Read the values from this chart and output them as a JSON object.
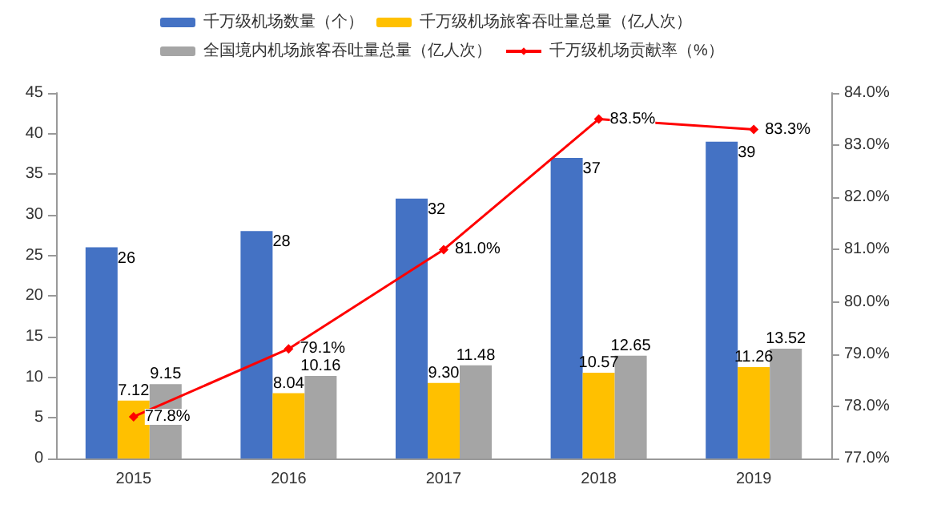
{
  "chart_data": {
    "type": "bar",
    "categories": [
      "2015",
      "2016",
      "2017",
      "2018",
      "2019"
    ],
    "series": [
      {
        "name": "千万级机场数量（个）",
        "color": "#4472c4",
        "values": [
          26,
          28,
          32,
          37,
          39
        ],
        "value_labels": [
          "26",
          "28",
          "32",
          "37",
          "39"
        ]
      },
      {
        "name": "千万级机场旅客吞吐量总量（亿人次）",
        "color": "#ffc000",
        "values": [
          7.12,
          8.04,
          9.3,
          10.57,
          11.26
        ],
        "value_labels": [
          "7.12",
          "8.04",
          "9.30",
          "10.57",
          "11.26"
        ]
      },
      {
        "name": "全国境内机场旅客吞吐量总量（亿人次）",
        "color": "#a5a5a5",
        "values": [
          9.15,
          10.16,
          11.48,
          12.65,
          13.52
        ],
        "value_labels": [
          "9.15",
          "10.16",
          "11.48",
          "12.65",
          "13.52"
        ]
      },
      {
        "name": "千万级机场贡献率（%）",
        "type": "line",
        "axis": "y2",
        "color": "#ff0000",
        "values": [
          77.8,
          79.1,
          81.0,
          83.5,
          83.3
        ],
        "value_labels": [
          "77.8%",
          "79.1%",
          "81.0%",
          "83.5%",
          "83.3%"
        ]
      }
    ],
    "ylim": [
      0,
      45
    ],
    "yticks": [
      0,
      5,
      10,
      15,
      20,
      25,
      30,
      35,
      40,
      45
    ],
    "y2lim": [
      77,
      84
    ],
    "y2ticks": [
      {
        "value": 77,
        "label": "77.0%"
      },
      {
        "value": 78,
        "label": "78.0%"
      },
      {
        "value": 79,
        "label": "79.0%"
      },
      {
        "value": 80,
        "label": "80.0%"
      },
      {
        "value": 81,
        "label": "81.0%"
      },
      {
        "value": 82,
        "label": "82.0%"
      },
      {
        "value": 83,
        "label": "83.0%"
      },
      {
        "value": 84,
        "label": "84.0%"
      }
    ],
    "grid": false,
    "legend": "top",
    "marker": "diamond",
    "line_style": "solid"
  }
}
